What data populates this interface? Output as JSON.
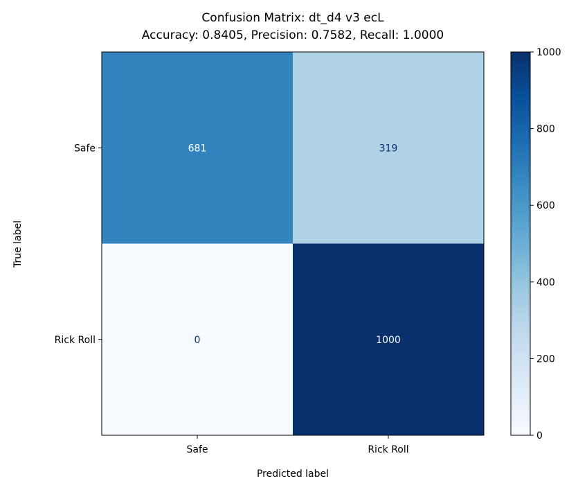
{
  "chart_data": {
    "type": "heatmap",
    "title": "Confusion Matrix: dt_d4 v3 ecL",
    "subtitle": "Accuracy: 0.8405, Precision: 0.7582, Recall: 1.0000",
    "xlabel": "Predicted label",
    "ylabel": "True label",
    "x_categories": [
      "Safe",
      "Rick Roll"
    ],
    "y_categories": [
      "Safe",
      "Rick Roll"
    ],
    "values": [
      [
        681,
        319
      ],
      [
        0,
        1000
      ]
    ],
    "colormap": "Blues",
    "colorbar": {
      "range": [
        0,
        1000
      ],
      "ticks": [
        "0",
        "200",
        "400",
        "600",
        "800",
        "1000"
      ]
    },
    "colors": {
      "low": "#f7fbff",
      "high": "#08306b",
      "text_light": "#ffffff",
      "text_dark": "#08306b"
    }
  }
}
